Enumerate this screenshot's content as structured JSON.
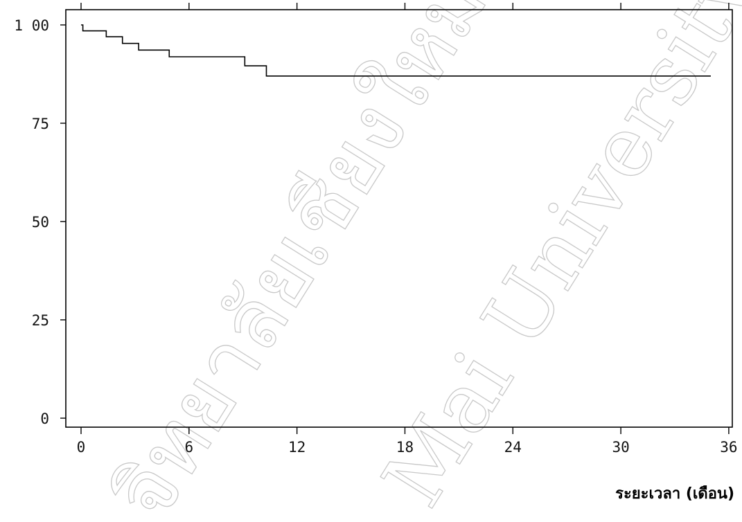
{
  "chart_data": {
    "type": "line",
    "step": true,
    "title": "",
    "xlabel": "ระยะเวลา (เดือน)",
    "ylabel": "",
    "xlim": [
      0,
      35
    ],
    "ylim": [
      0,
      100
    ],
    "x_ticks": [
      0,
      6,
      12,
      18,
      24,
      30,
      36
    ],
    "x_tick_labels": [
      "0",
      "6",
      "12",
      "18",
      "24",
      "30",
      "36"
    ],
    "y_ticks": [
      0,
      25,
      50,
      75,
      100
    ],
    "y_tick_labels": [
      "0",
      "25",
      "50",
      "75",
      "1 00"
    ],
    "grid": false,
    "series": [
      {
        "points": [
          [
            0,
            100
          ],
          [
            0.1,
            98.5
          ],
          [
            1.4,
            98.5
          ],
          [
            1.4,
            97.0
          ],
          [
            2.3,
            97.0
          ],
          [
            2.3,
            95.3
          ],
          [
            3.2,
            95.3
          ],
          [
            3.2,
            93.6
          ],
          [
            4.9,
            93.6
          ],
          [
            4.9,
            91.9
          ],
          [
            9.1,
            91.9
          ],
          [
            9.1,
            89.6
          ],
          [
            10.3,
            89.6
          ],
          [
            10.3,
            87.0
          ],
          [
            35.0,
            87.0
          ]
        ],
        "color": "#000000"
      }
    ]
  },
  "watermark": {
    "line1": "จิทยาลัยเชียงใหม่",
    "line2": "Mai University"
  }
}
